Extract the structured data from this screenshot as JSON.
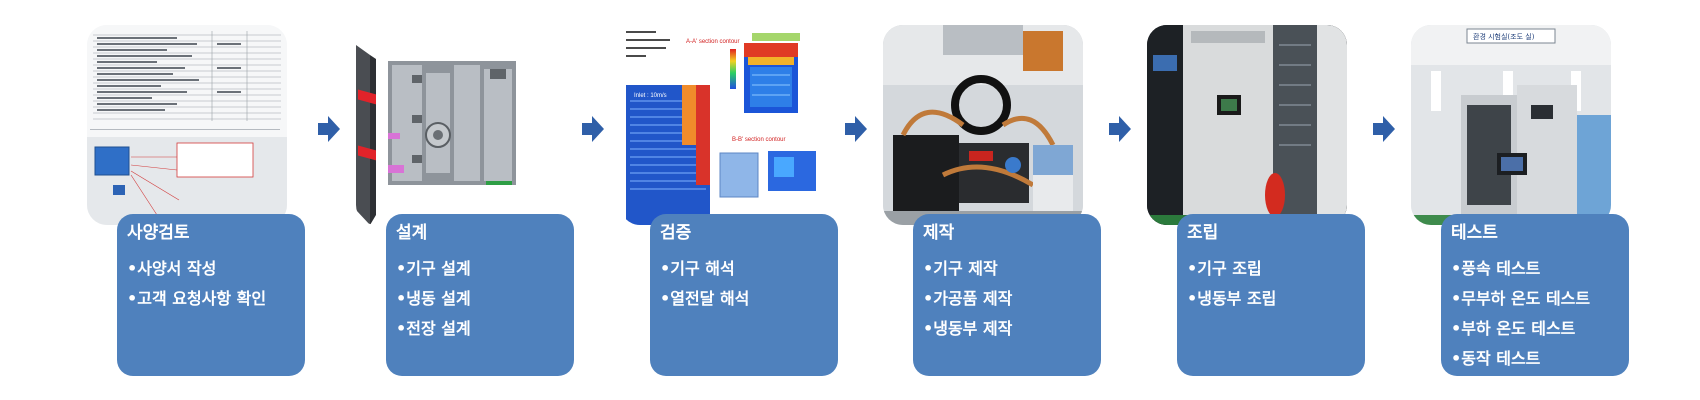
{
  "steps": [
    {
      "title": "사양검토",
      "items": [
        "•사양서 작성",
        "•고객 요청사항 확인"
      ],
      "image_icon": "spec-document-image"
    },
    {
      "title": "설계",
      "items": [
        "•기구 설계",
        "•냉동 설계",
        "•전장 설계"
      ],
      "image_icon": "cad-design-image"
    },
    {
      "title": "검증",
      "items": [
        "•기구 해석",
        "•열전달 해석"
      ],
      "image_icon": "simulation-contour-image"
    },
    {
      "title": "제작",
      "items": [
        "•기구 제작",
        "•가공품 제작",
        "•냉동부 제작"
      ],
      "image_icon": "refrigeration-unit-photo"
    },
    {
      "title": "조립",
      "items": [
        "•기구 조립",
        "•냉동부 조립"
      ],
      "image_icon": "cabinet-assembly-photo"
    },
    {
      "title": "테스트",
      "items": [
        "•풍속 테스트",
        "•무부하 온도 테스트",
        "•부하 온도 테스트",
        "•동작 테스트"
      ],
      "image_icon": "test-chamber-photo"
    }
  ],
  "image_labels": {
    "section_a": "A-A' section contour",
    "section_b": "B-B' section contour",
    "inlet": "Inlet : 10m/s",
    "sign": "환경 시험실(조도 실)"
  },
  "colors": {
    "card": "#4f81bd",
    "arrow": "#2f5fa8",
    "text": "#ffffff"
  }
}
